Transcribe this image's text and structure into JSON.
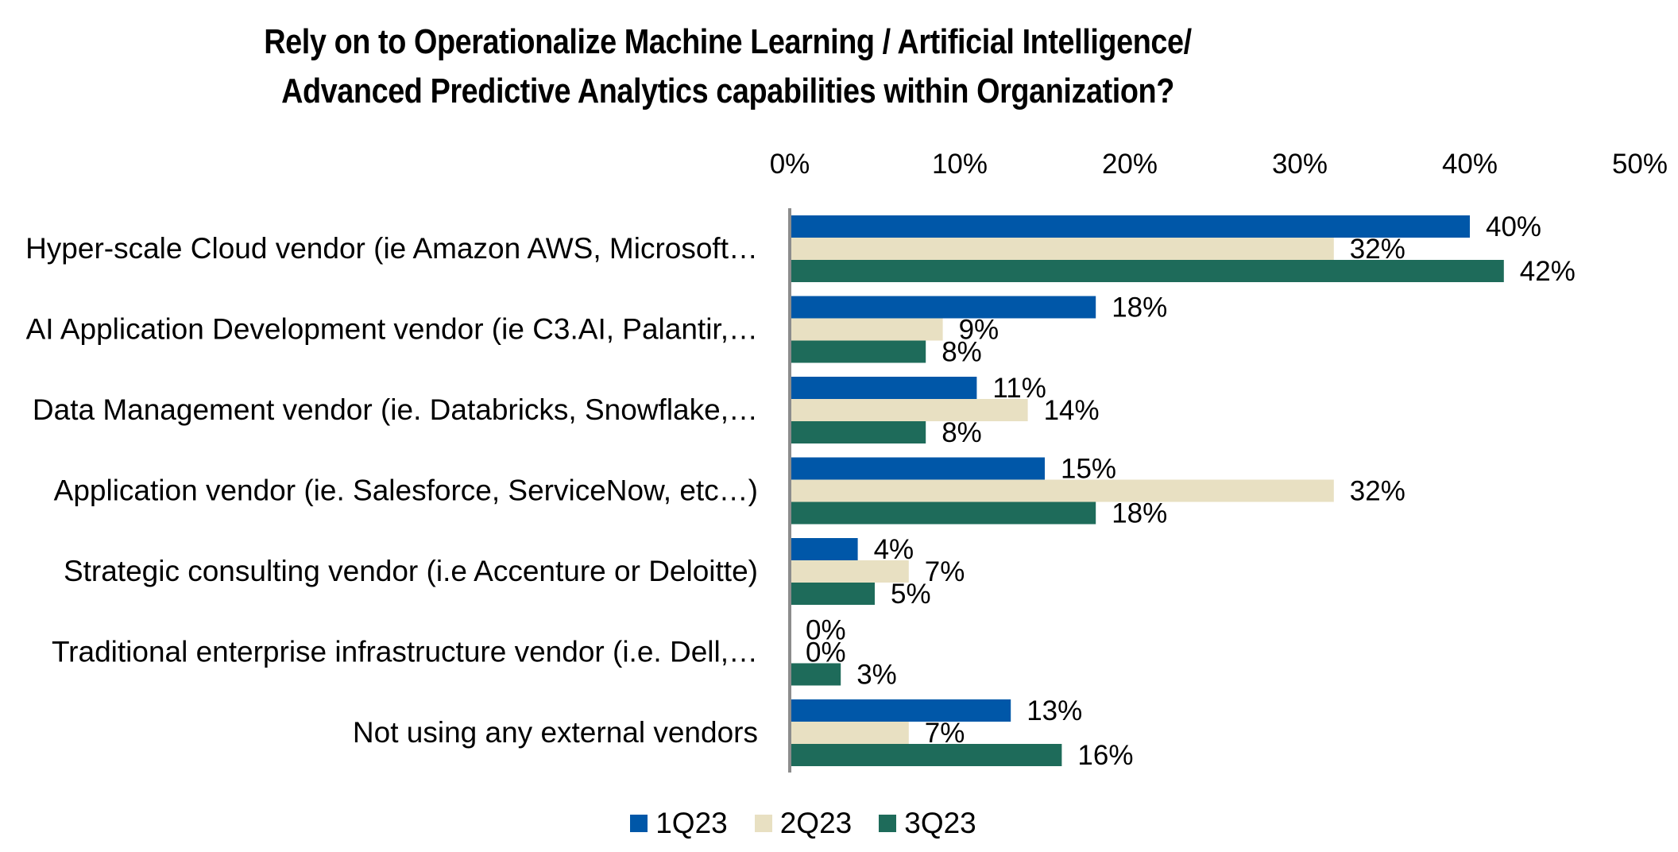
{
  "chart_data": {
    "type": "bar",
    "orientation": "horizontal",
    "title_lines": [
      "Rely on to Operationalize Machine Learning / Artificial Intelligence/",
      "Advanced Predictive Analytics capabilities within Organization?"
    ],
    "categories": [
      "Hyper-scale Cloud vendor (ie Amazon AWS, Microsoft…",
      "AI Application Development vendor (ie C3.AI, Palantir,…",
      "Data Management vendor (ie. Databricks, Snowflake,…",
      "Application vendor (ie. Salesforce, ServiceNow, etc…)",
      "Strategic consulting vendor (i.e Accenture or Deloitte)",
      "Traditional enterprise infrastructure vendor (i.e. Dell,…",
      "Not using any external vendors"
    ],
    "series": [
      {
        "name": "1Q23",
        "color": "#0057A8",
        "values": [
          40,
          18,
          11,
          15,
          4,
          0,
          13
        ],
        "labels": [
          "40%",
          "18%",
          "11%",
          "15%",
          "4%",
          "0%",
          "13%"
        ]
      },
      {
        "name": "2Q23",
        "color": "#E8E0C2",
        "values": [
          32,
          9,
          14,
          32,
          7,
          0,
          7
        ],
        "labels": [
          "32%",
          "9%",
          "14%",
          "32%",
          "7%",
          "0%",
          "7%"
        ]
      },
      {
        "name": "3Q23",
        "color": "#1E6B5A",
        "values": [
          42,
          8,
          8,
          18,
          5,
          3,
          16
        ],
        "labels": [
          "42%",
          "8%",
          "8%",
          "18%",
          "5%",
          "3%",
          "16%"
        ]
      }
    ],
    "x_ticks": [
      "0%",
      "10%",
      "20%",
      "30%",
      "40%",
      "50%"
    ],
    "xlim": [
      0,
      50
    ],
    "x_axis_position": "top",
    "grid": false,
    "legend_position": "bottom"
  }
}
